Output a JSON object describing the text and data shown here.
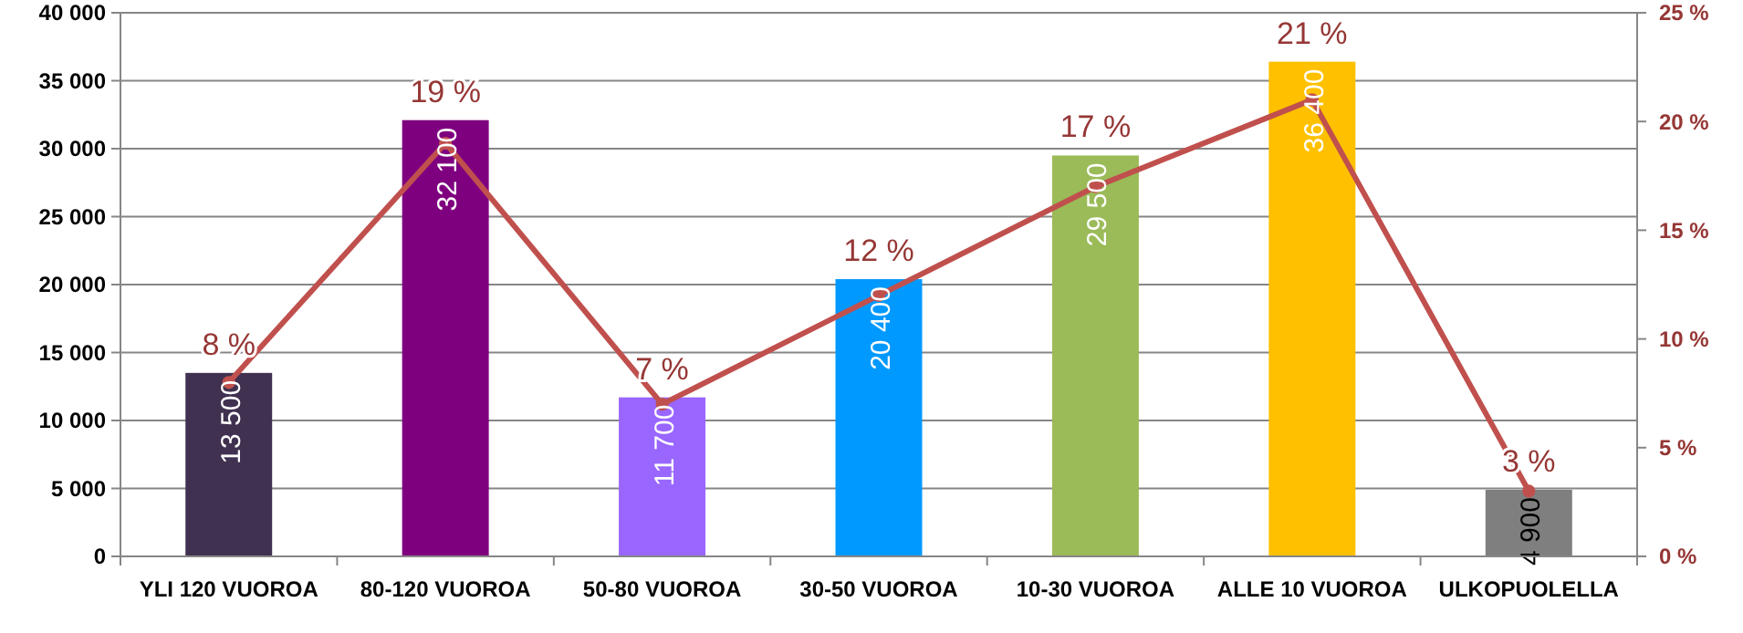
{
  "chart_data": {
    "type": "bar",
    "categories": [
      "YLI 120 VUOROA",
      "80-120 VUOROA",
      "50-80 VUOROA",
      "30-50 VUOROA",
      "10-30 VUOROA",
      "ALLE 10 VUOROA",
      "ULKOPUOLELLA"
    ],
    "series": [
      {
        "colors": [
          "#403151",
          "#7f007f",
          "#9966ff",
          "#0099ff",
          "#9bbb59",
          "#ffc000",
          "#7f7f7f"
        ],
        "values": [
          13500,
          32100,
          11700,
          20400,
          29500,
          36400,
          4900
        ],
        "value_labels": [
          "13 500",
          "32 100",
          "11 700",
          "20 400",
          "29 500",
          "36 400",
          "4 900"
        ]
      },
      {
        "type": "line",
        "axis": "y2",
        "color": "#c0504d",
        "marker": "circle",
        "values": [
          8,
          19,
          7,
          12,
          17,
          21,
          3
        ],
        "value_labels": [
          "8 %",
          "19 %",
          "7 %",
          "12 %",
          "17 %",
          "21 %",
          "3 %"
        ]
      }
    ],
    "ylim": [
      0,
      40000
    ],
    "yticks": [
      {
        "value": 0,
        "label": "0"
      },
      {
        "value": 5000,
        "label": "5 000"
      },
      {
        "value": 10000,
        "label": "10 000"
      },
      {
        "value": 15000,
        "label": "15 000"
      },
      {
        "value": 20000,
        "label": "20 000"
      },
      {
        "value": 25000,
        "label": "25 000"
      },
      {
        "value": 30000,
        "label": "30 000"
      },
      {
        "value": 35000,
        "label": "35 000"
      },
      {
        "value": 40000,
        "label": "40 000"
      }
    ],
    "y2lim": [
      0,
      25
    ],
    "y2ticks": [
      {
        "value": 0,
        "label": "0 %"
      },
      {
        "value": 5,
        "label": "5 %"
      },
      {
        "value": 10,
        "label": "10 %"
      },
      {
        "value": 15,
        "label": "15 %"
      },
      {
        "value": 20,
        "label": "20 %"
      },
      {
        "value": 25,
        "label": "25 %"
      }
    ],
    "grid": "y"
  }
}
